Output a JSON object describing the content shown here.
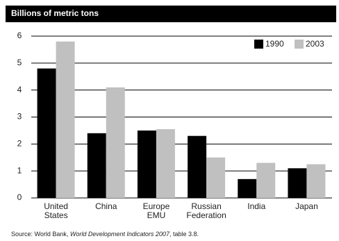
{
  "chart_data": {
    "type": "bar",
    "title": "Billions of metric tons",
    "categories": [
      [
        "United",
        "States"
      ],
      [
        "China"
      ],
      [
        "Europe",
        "EMU"
      ],
      [
        "Russian",
        "Federation"
      ],
      [
        "India"
      ],
      [
        "Japan"
      ]
    ],
    "series": [
      {
        "name": "1990",
        "color": "#000000",
        "values": [
          4.8,
          2.4,
          2.5,
          2.3,
          0.7,
          1.1
        ]
      },
      {
        "name": "2003",
        "color": "#c0c0c0",
        "values": [
          5.8,
          4.1,
          2.55,
          1.5,
          1.3,
          1.25
        ]
      }
    ],
    "ylim": [
      0,
      6
    ],
    "yticks": [
      0,
      1,
      2,
      3,
      4,
      5,
      6
    ],
    "grid": true,
    "legend": "top-right",
    "source": {
      "prefix": "Source: World Bank, ",
      "italic": "World Development Indicators 2007",
      "suffix": ", table 3.8."
    }
  }
}
